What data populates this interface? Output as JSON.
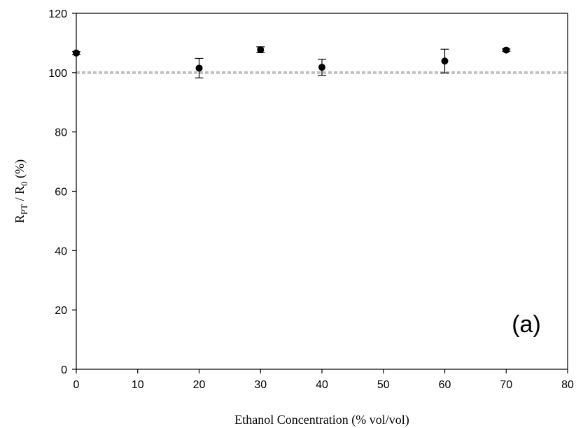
{
  "chart_data": {
    "type": "scatter",
    "xlabel": "Ethanol Concentration (% vol/vol)",
    "ylabel": {
      "parts": [
        {
          "text": "R",
          "sub": false
        },
        {
          "text": "PT",
          "sub": true
        },
        {
          "text": " / R",
          "sub": false
        },
        {
          "text": "0",
          "sub": true
        },
        {
          "text": " (%)",
          "sub": false
        }
      ]
    },
    "xlim": [
      0,
      80
    ],
    "ylim": [
      0,
      120
    ],
    "x_ticks": [
      0,
      10,
      20,
      30,
      40,
      50,
      60,
      70,
      80
    ],
    "y_ticks": [
      0,
      20,
      40,
      60,
      80,
      100,
      120
    ],
    "grid": false,
    "reference_line": {
      "y": 100,
      "color": "#c0c0c0",
      "style": "dotted"
    },
    "annotation": "(a)",
    "series": [
      {
        "marker_color": "#000000",
        "points": [
          {
            "x": 0,
            "y": 106.6,
            "err": 0.5
          },
          {
            "x": 20,
            "y": 101.5,
            "err": 3.3
          },
          {
            "x": 30,
            "y": 107.7,
            "err": 1.0
          },
          {
            "x": 40,
            "y": 101.8,
            "err": 2.7
          },
          {
            "x": 60,
            "y": 103.9,
            "err": 4.0
          },
          {
            "x": 70,
            "y": 107.6,
            "err": 0.4
          }
        ]
      }
    ]
  }
}
